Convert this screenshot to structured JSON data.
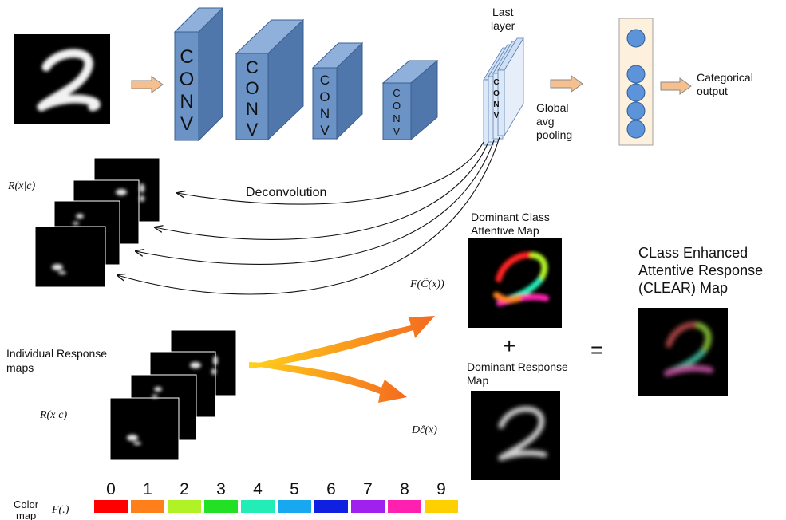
{
  "labels": {
    "last_layer_line1": "Last",
    "last_layer_line2": "layer",
    "gap_line1": "Global",
    "gap_line2": "avg",
    "gap_line3": "pooling",
    "categorical_line1": "Categorical",
    "categorical_line2": "output",
    "deconvolution": "Deconvolution",
    "dominant_class_line1": "Dominant Class",
    "dominant_class_line2": "Attentive Map",
    "clear_line1": "CLass Enhanced",
    "clear_line2": "Attentive Response",
    "clear_line3": "(CLEAR) Map",
    "individual_line1": "Individual Response",
    "individual_line2": "maps",
    "dominant_response_line1": "Dominant Response",
    "dominant_response_line2": "Map",
    "plus": "+",
    "equals": "=",
    "color_line1": "Color",
    "color_line2": "map"
  },
  "conv_letters": [
    "C",
    "O",
    "N",
    "V"
  ],
  "math": {
    "r_top": "R(x|c)",
    "r_bottom": "R(x|c)",
    "f_c_hat": "F(Ĉ(x))",
    "d_c_hat": "Dĉ(x)",
    "f_dot": "F(.)"
  },
  "colormap": {
    "digits": [
      "0",
      "1",
      "2",
      "3",
      "4",
      "5",
      "6",
      "7",
      "8",
      "9"
    ],
    "colors": [
      "#ff0000",
      "#ff7f1a",
      "#b0f226",
      "#22e024",
      "#22edb6",
      "#18a8f0",
      "#1020e0",
      "#a020f0",
      "#ff20b0",
      "#ffd000"
    ]
  },
  "theme": {
    "conv_front": "#6b93c6",
    "conv_side": "#4f77ab",
    "conv_top": "#8fb0db",
    "arrow_fill": "#f6c08e",
    "neuron_fill": "#5d93d8",
    "panel_fill": "#fdf0dc"
  }
}
